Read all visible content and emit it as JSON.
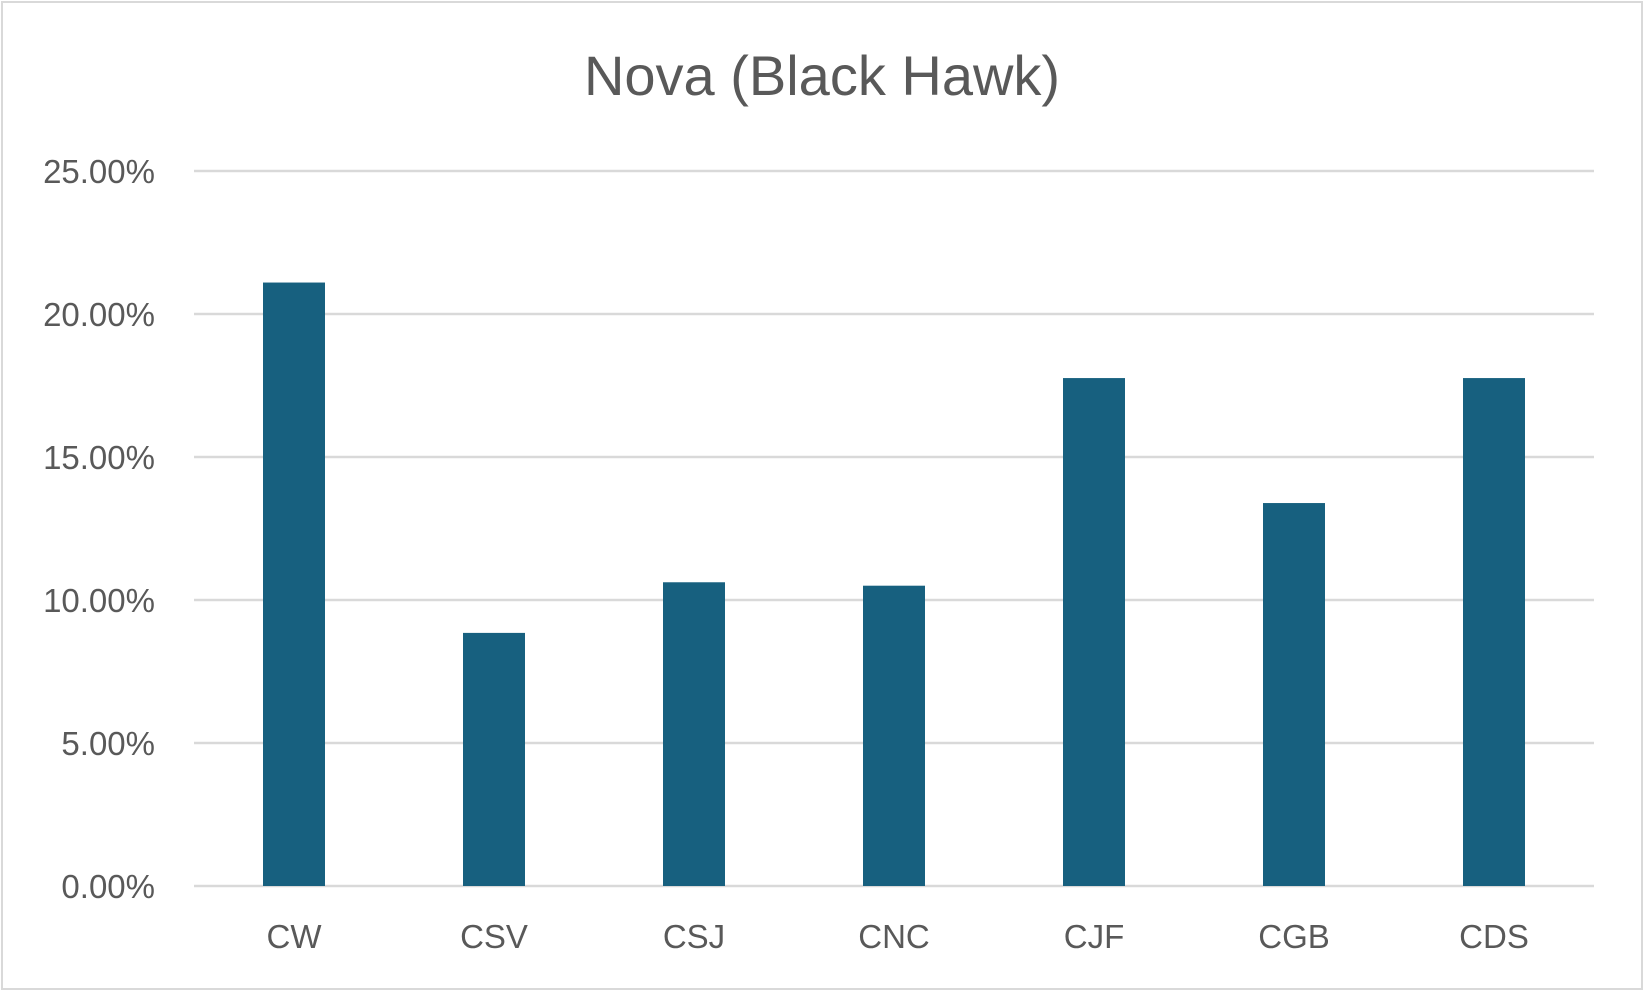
{
  "chart_data": {
    "type": "bar",
    "title": "Nova (Black Hawk)",
    "xlabel": "",
    "ylabel": "",
    "categories": [
      "CW",
      "CSV",
      "CSJ",
      "CNC",
      "CJF",
      "CGB",
      "CDS"
    ],
    "values": [
      0.211,
      0.0885,
      0.1062,
      0.105,
      0.1776,
      0.1339,
      0.1776
    ],
    "ylim": [
      0,
      0.25
    ],
    "y_ticks": [
      0,
      0.05,
      0.1,
      0.15,
      0.2,
      0.25
    ],
    "y_tick_labels": [
      "0.00%",
      "5.00%",
      "10.00%",
      "15.00%",
      "20.00%",
      "25.00%"
    ],
    "grid": true,
    "legend": "none",
    "bar_color": "#17607f",
    "grid_color": "#d9d9d9",
    "text_color": "#595959"
  }
}
